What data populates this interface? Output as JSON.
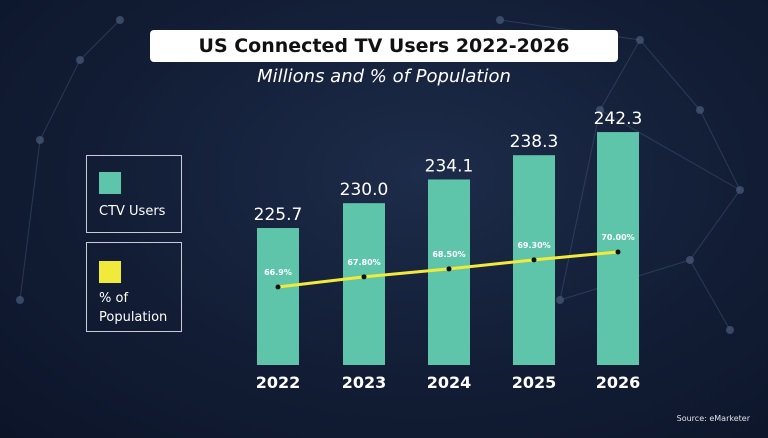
{
  "chart_data": {
    "type": "bar+line",
    "title": "US Connected TV Users 2022-2026",
    "subtitle": "Millions and % of Population",
    "categories": [
      "2022",
      "2023",
      "2024",
      "2025",
      "2026"
    ],
    "series": [
      {
        "name": "CTV Users",
        "type": "bar",
        "values": [
          225.7,
          230.0,
          234.1,
          238.3,
          242.3
        ],
        "labels": [
          "225.7",
          "230.0",
          "234.1",
          "238.3",
          "242.3"
        ],
        "color": "#5ec4aa"
      },
      {
        "name": "% of Population",
        "type": "line",
        "values": [
          66.9,
          67.8,
          68.5,
          69.3,
          70.0
        ],
        "labels": [
          "66.9%",
          "67.80%",
          "68.50%",
          "69.30%",
          "70.00%"
        ],
        "color": "#f2ea3a"
      }
    ],
    "legend": "left",
    "grid": false,
    "source": "Source: eMarketer"
  }
}
